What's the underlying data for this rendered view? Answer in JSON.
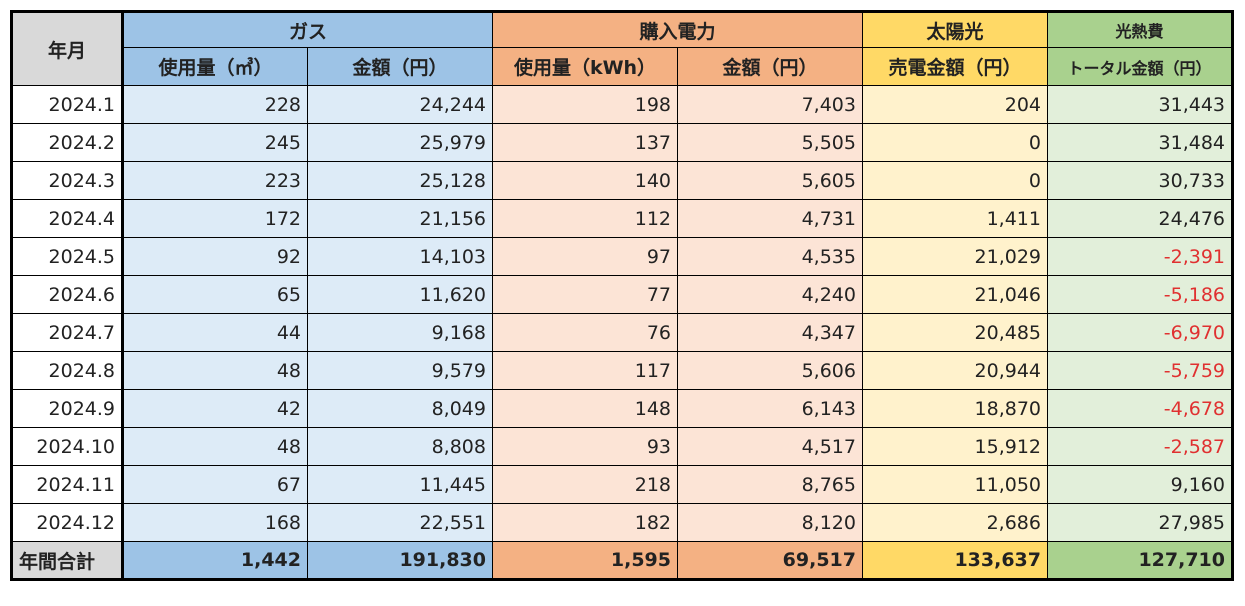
{
  "headers": {
    "year_month": "年月",
    "gas": "ガス",
    "gas_usage": "使用量（㎥）",
    "gas_amount": "金額（円）",
    "electricity": "購入電力",
    "elec_usage": "使用量（kWh）",
    "elec_amount": "金額（円）",
    "solar": "太陽光",
    "solar_sales": "売電金額（円）",
    "total_line1": "光熱費",
    "total_line2": "トータル金額（円）"
  },
  "rows": [
    {
      "month": "2024.1",
      "gas_usage": "228",
      "gas_amount": "24,244",
      "elec_usage": "198",
      "elec_amount": "7,403",
      "solar": "204",
      "total": "31,443",
      "negative": false
    },
    {
      "month": "2024.2",
      "gas_usage": "245",
      "gas_amount": "25,979",
      "elec_usage": "137",
      "elec_amount": "5,505",
      "solar": "0",
      "total": "31,484",
      "negative": false
    },
    {
      "month": "2024.3",
      "gas_usage": "223",
      "gas_amount": "25,128",
      "elec_usage": "140",
      "elec_amount": "5,605",
      "solar": "0",
      "total": "30,733",
      "negative": false
    },
    {
      "month": "2024.4",
      "gas_usage": "172",
      "gas_amount": "21,156",
      "elec_usage": "112",
      "elec_amount": "4,731",
      "solar": "1,411",
      "total": "24,476",
      "negative": false
    },
    {
      "month": "2024.5",
      "gas_usage": "92",
      "gas_amount": "14,103",
      "elec_usage": "97",
      "elec_amount": "4,535",
      "solar": "21,029",
      "total": "-2,391",
      "negative": true
    },
    {
      "month": "2024.6",
      "gas_usage": "65",
      "gas_amount": "11,620",
      "elec_usage": "77",
      "elec_amount": "4,240",
      "solar": "21,046",
      "total": "-5,186",
      "negative": true
    },
    {
      "month": "2024.7",
      "gas_usage": "44",
      "gas_amount": "9,168",
      "elec_usage": "76",
      "elec_amount": "4,347",
      "solar": "20,485",
      "total": "-6,970",
      "negative": true
    },
    {
      "month": "2024.8",
      "gas_usage": "48",
      "gas_amount": "9,579",
      "elec_usage": "117",
      "elec_amount": "5,606",
      "solar": "20,944",
      "total": "-5,759",
      "negative": true
    },
    {
      "month": "2024.9",
      "gas_usage": "42",
      "gas_amount": "8,049",
      "elec_usage": "148",
      "elec_amount": "6,143",
      "solar": "18,870",
      "total": "-4,678",
      "negative": true
    },
    {
      "month": "2024.10",
      "gas_usage": "48",
      "gas_amount": "8,808",
      "elec_usage": "93",
      "elec_amount": "4,517",
      "solar": "15,912",
      "total": "-2,587",
      "negative": true
    },
    {
      "month": "2024.11",
      "gas_usage": "67",
      "gas_amount": "11,445",
      "elec_usage": "218",
      "elec_amount": "8,765",
      "solar": "11,050",
      "total": "9,160",
      "negative": false
    },
    {
      "month": "2024.12",
      "gas_usage": "168",
      "gas_amount": "22,551",
      "elec_usage": "182",
      "elec_amount": "8,120",
      "solar": "2,686",
      "total": "27,985",
      "negative": false
    }
  ],
  "summary": {
    "label": "年間合計",
    "gas_usage": "1,442",
    "gas_amount": "191,830",
    "elec_usage": "1,595",
    "elec_amount": "69,517",
    "solar": "133,637",
    "total": "127,710"
  },
  "colors": {
    "negative_text": "#e03030",
    "gas_header": "#9dc3e6",
    "electricity_header": "#f4b183",
    "solar_header": "#ffd966",
    "total_header": "#a9d18e"
  }
}
